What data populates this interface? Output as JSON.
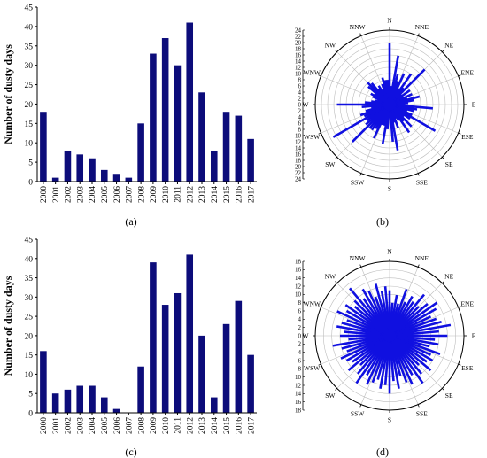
{
  "panels": [
    {
      "caption": "(a)",
      "chart_data": {
        "type": "bar",
        "title": "",
        "ylabel": "Number of dusty days",
        "xlabel": "",
        "ylim": [
          0,
          45
        ],
        "yticks": [
          "0",
          "5",
          "10",
          "15",
          "20",
          "25",
          "30",
          "35",
          "40",
          "45"
        ],
        "categories": [
          "2000",
          "2001",
          "2002",
          "2003",
          "2004",
          "2005",
          "2006",
          "2007",
          "2008",
          "2009",
          "2010",
          "2011",
          "2012",
          "2013",
          "2014",
          "2015",
          "2016",
          "2017"
        ],
        "values": [
          18,
          1,
          8,
          7,
          6,
          3,
          2,
          1,
          15,
          33,
          37,
          30,
          41,
          23,
          8,
          18,
          17,
          11
        ],
        "color": "#0c0c7a"
      }
    },
    {
      "caption": "(b)",
      "chart_data": {
        "type": "polar-bar",
        "title": "",
        "rmax": 24,
        "radial_ticks": [
          "0",
          "2",
          "4",
          "6",
          "8",
          "10",
          "12",
          "14",
          "16",
          "18",
          "20",
          "22",
          "24"
        ],
        "directions": [
          "N",
          "NNE",
          "NE",
          "ENE",
          "E",
          "ESE",
          "SE",
          "SSE",
          "S",
          "SSW",
          "SW",
          "WSW",
          "W",
          "WNW",
          "NW",
          "NNW"
        ],
        "values": [
          20,
          6,
          16,
          10,
          8,
          11,
          6,
          12,
          7,
          16,
          5,
          8,
          5,
          8,
          6,
          10,
          8,
          6,
          5,
          14,
          9,
          8,
          6,
          8,
          17,
          8,
          6,
          10,
          7,
          11,
          6,
          5,
          8,
          6,
          15,
          12,
          4,
          8,
          13,
          7,
          7,
          12,
          9,
          10,
          10,
          17,
          10,
          9,
          21,
          9,
          10,
          8,
          6,
          9,
          17,
          8,
          6,
          5,
          4,
          6,
          7,
          6,
          9,
          10,
          9,
          6,
          7,
          5,
          7,
          9,
          8,
          8
        ],
        "color": "#1010e0"
      }
    },
    {
      "caption": "(c)",
      "chart_data": {
        "type": "bar",
        "title": "",
        "ylabel": "Number of dusty days",
        "xlabel": "",
        "ylim": [
          0,
          45
        ],
        "yticks": [
          "0",
          "5",
          "10",
          "15",
          "20",
          "25",
          "30",
          "35",
          "40",
          "45"
        ],
        "categories": [
          "2000",
          "2001",
          "2002",
          "2003",
          "2004",
          "2005",
          "2006",
          "2007",
          "2008",
          "2009",
          "2010",
          "2011",
          "2012",
          "2013",
          "2014",
          "2015",
          "2016",
          "2017"
        ],
        "values": [
          16,
          5,
          6,
          7,
          7,
          4,
          1,
          0,
          12,
          39,
          28,
          31,
          41,
          20,
          4,
          23,
          29,
          15
        ],
        "color": "#0c0c7a"
      }
    },
    {
      "caption": "(d)",
      "chart_data": {
        "type": "polar-bar",
        "title": "",
        "rmax": 18,
        "radial_ticks": [
          "0",
          "2",
          "4",
          "6",
          "8",
          "10",
          "12",
          "14",
          "16",
          "18"
        ],
        "directions": [
          "N",
          "NNE",
          "NE",
          "ENE",
          "E",
          "ESE",
          "SE",
          "SSE",
          "S",
          "SSW",
          "SW",
          "WSW",
          "W",
          "WNW",
          "NW",
          "NNW"
        ],
        "values": [
          11,
          8,
          10,
          8,
          12,
          9,
          11,
          10,
          13,
          10,
          12,
          14,
          13,
          11,
          12,
          13,
          15,
          12,
          14,
          11,
          12,
          10,
          13,
          11,
          12,
          11,
          13,
          10,
          12,
          14,
          11,
          13,
          12,
          10,
          13,
          11,
          14,
          12,
          13,
          11,
          12,
          13,
          11,
          14,
          12,
          10,
          13,
          11,
          12,
          13,
          11,
          12,
          14,
          10,
          12,
          11,
          13,
          12,
          11,
          14,
          12,
          13,
          11,
          12,
          15,
          11,
          13,
          12,
          10,
          13,
          11,
          12
        ],
        "color": "#1010e0"
      }
    }
  ]
}
